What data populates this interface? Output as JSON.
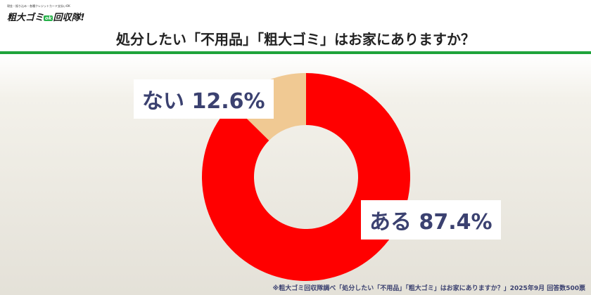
{
  "logo": {
    "tagline": "現金・振り込み・各種クレジットカード支払いOK",
    "name": "粗大ゴミ",
    "badge": "ok",
    "name2": "回収隊!"
  },
  "header": {
    "title": "処分したい「不用品」「粗大ゴミ」はお家にありますか？"
  },
  "footer": {
    "note": "※粗大ゴミ回収隊調べ「処分したい「不用品」「粗大ゴミ」はお家にありますか？」2025年9月 回答数500票"
  },
  "chart_data": {
    "type": "pie",
    "donut": true,
    "title": "処分したい「不用品」「粗大ゴミ」はお家にありますか？",
    "slices": [
      {
        "label": "ある",
        "value": 87.4,
        "display": "ある 87.4%",
        "color": "#ff0000"
      },
      {
        "label": "ない",
        "value": 12.6,
        "display": "ない 12.6%",
        "color": "#f0c993"
      }
    ]
  }
}
